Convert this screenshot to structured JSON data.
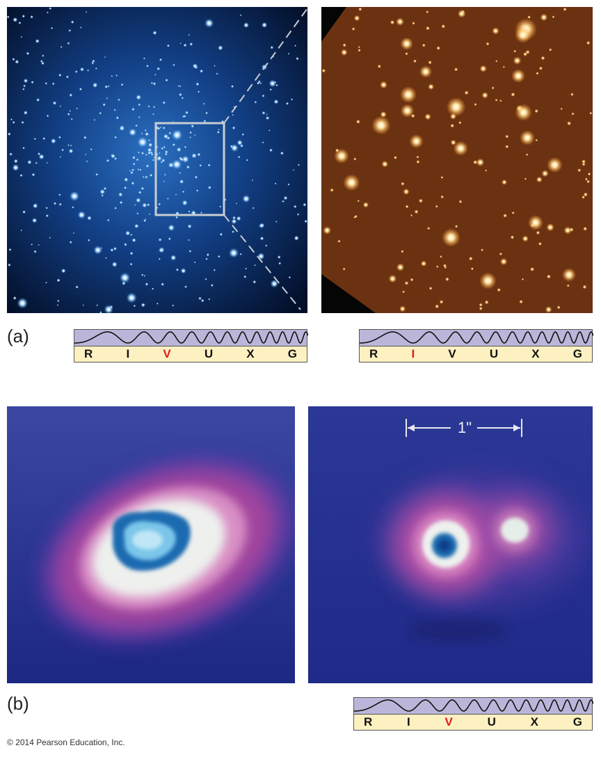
{
  "panel_labels": {
    "a": "(a)",
    "b": "(b)"
  },
  "bands": {
    "letters": [
      "R",
      "I",
      "V",
      "U",
      "X",
      "G"
    ],
    "top_left_active": "V",
    "top_right_active": "I",
    "bottom_right_active": "V"
  },
  "scale_bar": {
    "label": "1\""
  },
  "copyright": "© 2014 Pearson Education, Inc.",
  "colors": {
    "cluster_bg": "#031430",
    "cluster_stars": "#7fc4ff",
    "hubble_bg": "#6b3211",
    "hubble_stars": "#ffd88a",
    "band_wave_bg": "#bbb6d9",
    "band_letters_bg": "#fdf1c2",
    "active_letter": "#e11b1b",
    "blob_bg": "#1f2a8a"
  }
}
